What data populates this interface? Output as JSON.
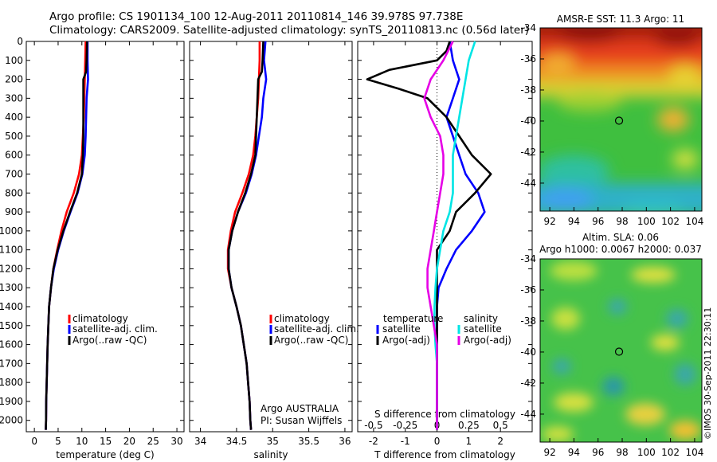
{
  "header": {
    "line1": "Argo profile: CS 1901134_100 12-Aug-2011 20110814_146 39.978S 97.738E",
    "line2": "Climatology: CARS2009. Satellite-adjusted climatology: synTS_20110813.nc (0.56d later)"
  },
  "footer": {
    "argo_label": "Argo AUSTRALIA",
    "pi_label": "PI: Susan Wijffels",
    "imos_stamp": "©IMOS 30-Sep-2011 22:30:11"
  },
  "colors": {
    "climatology": "#ff0000",
    "satellite": "#0000ff",
    "argo": "#000000",
    "salinity_satellite": "#00e5e5",
    "salinity_argo": "#e600e6"
  },
  "chart_data": [
    {
      "type": "line",
      "id": "temperature",
      "xlabel": "temperature (deg C)",
      "ylabel": "",
      "xlim": [
        -1.7,
        31.5
      ],
      "ylim": [
        2060,
        0
      ],
      "xticks": [
        0,
        5,
        10,
        15,
        20,
        25,
        30
      ],
      "yticks": [
        0,
        100,
        200,
        300,
        400,
        500,
        600,
        700,
        800,
        900,
        1000,
        1100,
        1200,
        1300,
        1400,
        1500,
        1600,
        1700,
        1800,
        1900,
        2000
      ],
      "legend": {
        "placement": "lower-right",
        "entries": [
          "climatology",
          "satellite-adj. clim.",
          "Argo(..raw -QC)"
        ]
      },
      "series": [
        {
          "name": "climatology",
          "color": "#ff0000",
          "x": [
            10.8,
            10.7,
            10.6,
            10.5,
            10.4,
            10.2,
            10.0,
            9.4,
            8.3,
            6.8,
            5.7,
            4.8,
            4.0,
            3.5,
            3.1,
            2.95,
            2.8,
            2.7,
            2.6,
            2.5,
            2.45,
            2.4
          ],
          "y": [
            0,
            100,
            200,
            300,
            400,
            500,
            600,
            700,
            800,
            900,
            1000,
            1100,
            1200,
            1300,
            1400,
            1500,
            1600,
            1700,
            1800,
            1900,
            2000,
            2050
          ]
        },
        {
          "name": "satellite-adj. clim.",
          "color": "#0000ff",
          "x": [
            11.2,
            11.2,
            11.3,
            11.0,
            10.9,
            10.8,
            10.6,
            10.1,
            9.1,
            7.6,
            6.2,
            5.0,
            4.1,
            3.5,
            3.1,
            2.95,
            2.8,
            2.7,
            2.6,
            2.5,
            2.45,
            2.4
          ],
          "y": [
            0,
            100,
            200,
            300,
            400,
            500,
            600,
            700,
            800,
            900,
            1000,
            1100,
            1200,
            1300,
            1400,
            1500,
            1600,
            1700,
            1800,
            1900,
            2000,
            2050
          ]
        },
        {
          "name": "Argo(..raw -QC)",
          "color": "#000000",
          "x": [
            11.1,
            11.0,
            10.9,
            10.3,
            10.3,
            10.3,
            10.2,
            10.0,
            9.0,
            7.5,
            6.1,
            4.9,
            4.0,
            3.5,
            3.1,
            2.95,
            2.8,
            2.7,
            2.6,
            2.5,
            2.45,
            2.4
          ],
          "y": [
            0,
            100,
            160,
            200,
            300,
            500,
            600,
            700,
            800,
            900,
            1000,
            1100,
            1200,
            1300,
            1400,
            1500,
            1600,
            1700,
            1800,
            1900,
            2000,
            2050
          ]
        }
      ]
    },
    {
      "type": "line",
      "id": "salinity",
      "xlabel": "salinity",
      "ylabel": "",
      "xlim": [
        33.85,
        36.1
      ],
      "ylim": [
        2060,
        0
      ],
      "xticks": [
        34,
        34.5,
        35,
        35.5,
        36
      ],
      "xticklabels": [
        "34",
        "34.5",
        "35",
        "35.5",
        "36"
      ],
      "legend": {
        "placement": "lower-right",
        "entries": [
          "climatology",
          "satellite-adj. clim.",
          "Argo(..raw -QC)"
        ]
      },
      "series": [
        {
          "name": "climatology",
          "color": "#ff0000",
          "x": [
            34.82,
            34.82,
            34.81,
            34.8,
            34.78,
            34.76,
            34.73,
            34.67,
            34.58,
            34.48,
            34.42,
            34.38,
            34.38,
            34.43,
            34.5,
            34.56,
            34.6,
            34.64,
            34.66,
            34.68,
            34.69,
            34.7
          ],
          "y": [
            0,
            100,
            200,
            300,
            400,
            500,
            600,
            700,
            800,
            900,
            1000,
            1100,
            1200,
            1300,
            1400,
            1500,
            1600,
            1700,
            1800,
            1900,
            2000,
            2050
          ]
        },
        {
          "name": "satellite-adj. clim.",
          "color": "#0000ff",
          "x": [
            34.9,
            34.88,
            34.91,
            34.87,
            34.85,
            34.81,
            34.77,
            34.71,
            34.63,
            34.52,
            34.44,
            34.39,
            34.39,
            34.43,
            34.5,
            34.56,
            34.6,
            34.64,
            34.66,
            34.68,
            34.69,
            34.7
          ],
          "y": [
            0,
            100,
            200,
            300,
            400,
            500,
            600,
            700,
            800,
            900,
            1000,
            1100,
            1200,
            1300,
            1400,
            1500,
            1600,
            1700,
            1800,
            1900,
            2000,
            2050
          ]
        },
        {
          "name": "Argo(..raw -QC)",
          "color": "#000000",
          "x": [
            34.87,
            34.86,
            34.85,
            34.8,
            34.79,
            34.77,
            34.76,
            34.7,
            34.62,
            34.52,
            34.44,
            34.39,
            34.39,
            34.43,
            34.5,
            34.56,
            34.6,
            34.64,
            34.66,
            34.68,
            34.69,
            34.7
          ],
          "y": [
            0,
            100,
            160,
            200,
            300,
            500,
            600,
            700,
            800,
            900,
            1000,
            1100,
            1200,
            1300,
            1400,
            1500,
            1600,
            1700,
            1800,
            1900,
            2000,
            2050
          ]
        }
      ]
    },
    {
      "type": "line",
      "id": "difference",
      "xlabel": "T difference from climatology",
      "xlabel_top": "S difference from climatology",
      "xlim": [
        -2.5,
        3.0
      ],
      "ylim": [
        2060,
        0
      ],
      "xticks": [
        -2,
        -1,
        0,
        1,
        2
      ],
      "top_ticks": {
        "positions": [
          -2,
          -1,
          0,
          1,
          2
        ],
        "labels": [
          "-0.5",
          "-0.25",
          "0",
          "0.25",
          "0.5"
        ]
      },
      "zero_line": true,
      "legend": {
        "placement": "lower-center",
        "headers": [
          "temperature",
          "salinity"
        ],
        "entries": [
          "satellite",
          "Argo(-adj)",
          "satellite",
          "Argo(-adj)"
        ]
      },
      "series": [
        {
          "name": "satellite",
          "group": "temperature",
          "color": "#0000ff",
          "x": [
            0.4,
            0.5,
            0.7,
            0.5,
            0.3,
            0.5,
            0.7,
            0.9,
            1.3,
            1.5,
            1.1,
            0.6,
            0.3,
            0.05,
            0.0,
            0.0,
            0.0,
            0.0,
            0.0,
            0.0,
            0.0,
            0.0
          ],
          "y": [
            0,
            100,
            200,
            300,
            400,
            500,
            600,
            700,
            800,
            900,
            1000,
            1100,
            1200,
            1300,
            1400,
            1500,
            1600,
            1700,
            1800,
            1900,
            2000,
            2050
          ]
        },
        {
          "name": "Argo(-adj)",
          "group": "temperature",
          "color": "#000000",
          "x": [
            0.4,
            0.3,
            0.0,
            -1.5,
            -2.2,
            -1.2,
            -0.3,
            0.3,
            0.7,
            1.1,
            1.7,
            1.2,
            0.6,
            0.4,
            0.0,
            0.0,
            0.0,
            0.0,
            0.0,
            0.0,
            0.0,
            0.0,
            0.0,
            0.0
          ],
          "y": [
            0,
            50,
            100,
            150,
            200,
            250,
            300,
            400,
            500,
            600,
            700,
            800,
            900,
            1000,
            1100,
            1200,
            1300,
            1400,
            1500,
            1600,
            1700,
            1800,
            1900,
            2050
          ]
        },
        {
          "name": "satellite",
          "group": "salinity",
          "color": "#00e5e5",
          "x": [
            1.2,
            1.0,
            0.9,
            0.8,
            0.7,
            0.6,
            0.5,
            0.5,
            0.5,
            0.4,
            0.2,
            0.1,
            0.0,
            -0.05,
            -0.08,
            -0.08,
            -0.05,
            0.0,
            0.0,
            0.0,
            0.0,
            0.0
          ],
          "y": [
            0,
            100,
            200,
            300,
            400,
            500,
            600,
            700,
            800,
            900,
            1000,
            1100,
            1200,
            1300,
            1400,
            1500,
            1600,
            1700,
            1800,
            1900,
            2000,
            2050
          ]
        },
        {
          "name": "Argo(-adj)",
          "group": "salinity",
          "color": "#e600e6",
          "x": [
            0.5,
            0.2,
            -0.2,
            -0.4,
            -0.2,
            0.1,
            0.2,
            0.2,
            0.1,
            0.0,
            -0.1,
            -0.2,
            -0.3,
            -0.3,
            -0.2,
            -0.1,
            0.0,
            0.0,
            0.0,
            0.0,
            0.0,
            0.0
          ],
          "y": [
            0,
            100,
            200,
            300,
            400,
            500,
            600,
            700,
            800,
            900,
            1000,
            1100,
            1200,
            1300,
            1400,
            1500,
            1600,
            1700,
            1800,
            1900,
            2000,
            2050
          ]
        }
      ]
    },
    {
      "type": "heatmap",
      "id": "sst_map",
      "title": "AMSR-E SST: 11.3 Argo: 11",
      "xlim": [
        91.2,
        104.6
      ],
      "ylim": [
        -45.8,
        -34
      ],
      "xticks": [
        92,
        94,
        96,
        98,
        100,
        102,
        104
      ],
      "yticks": [
        -34,
        -36,
        -38,
        -40,
        -42,
        -44
      ],
      "marker": {
        "lon": 97.738,
        "lat": -39.978
      }
    },
    {
      "type": "heatmap",
      "id": "sla_map",
      "title_line1": "Altim. SLA: 0.06",
      "title_line2": "Argo h1000: 0.0067 h2000: 0.037",
      "xlim": [
        91.2,
        104.6
      ],
      "ylim": [
        -45.8,
        -34
      ],
      "xticks": [
        92,
        94,
        96,
        98,
        100,
        102,
        104
      ],
      "yticks": [
        -34,
        -36,
        -38,
        -40,
        -42,
        -44
      ],
      "marker": {
        "lon": 97.738,
        "lat": -39.978
      }
    }
  ]
}
